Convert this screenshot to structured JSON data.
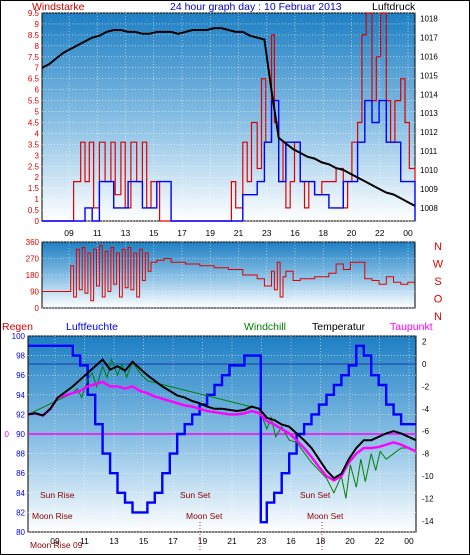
{
  "header": {
    "title": "24 hour graph day : 10 Februar 2013",
    "left_label": "Windstarke",
    "right_label": "Luftdruck"
  },
  "x_ticks": [
    "09",
    "11",
    "13",
    "15",
    "17",
    "19",
    "21",
    "23",
    "16",
    "18",
    "20",
    "22",
    "00"
  ],
  "colors": {
    "wind": "#e00000",
    "gust": "#0000ff",
    "pressure": "#000000",
    "humidity": "#0000ff",
    "windchill": "#008000",
    "temperature": "#000000",
    "dewpoint": "#ff00ff",
    "moon_label": "#8b0000",
    "axis_label": "#0000ff",
    "grid": "#ffffff"
  },
  "chart_data": [
    {
      "type": "line",
      "title": "24 hour graph day : 10 Februar 2013",
      "ylabel_left": "Windstarke",
      "ylabel_right": "Luftdruck",
      "y_left_ticks": [
        "0",
        "0.5",
        "1",
        "1.5",
        "2",
        "2.5",
        "3",
        "3.5",
        "4",
        "4.5",
        "5",
        "5.5",
        "6",
        "6.5",
        "7",
        "7.5",
        "8",
        "8.5",
        "9",
        "9.5"
      ],
      "y_right_ticks": [
        "1008",
        "1009",
        "1010",
        "1011",
        "1012",
        "1013",
        "1014",
        "1015",
        "1016",
        "1017",
        "1018"
      ],
      "ylim_left": [
        0,
        9.5
      ],
      "ylim_right": [
        1007.3,
        1018.3
      ],
      "xlim": [
        0,
        26
      ],
      "series": [
        {
          "axis": "right",
          "x": [
            0,
            0.5,
            1,
            1.5,
            2,
            2.5,
            3,
            3.5,
            4,
            4.5,
            5,
            5.5,
            6,
            6.5,
            7,
            7.5,
            8,
            8.5,
            9,
            9.5,
            10,
            10.5,
            11,
            11.5,
            12,
            12.5,
            13,
            13.5,
            14,
            14.5,
            15,
            15.5,
            16,
            16.5,
            17,
            17.5,
            18,
            18.5,
            19,
            19.5,
            20,
            20.5,
            21,
            21.5,
            22,
            22.5,
            23,
            23.5,
            24,
            24.5,
            25,
            25.5,
            26
          ],
          "values": [
            1015.4,
            1015.6,
            1015.9,
            1016.2,
            1016.4,
            1016.6,
            1016.8,
            1017.0,
            1017.1,
            1017.3,
            1017.4,
            1017.4,
            1017.3,
            1017.3,
            1017.2,
            1017.2,
            1017.3,
            1017.3,
            1017.3,
            1017.2,
            1017.3,
            1017.4,
            1017.4,
            1017.4,
            1017.5,
            1017.5,
            1017.4,
            1017.3,
            1017.3,
            1017.1,
            1017.0,
            1016.9,
            1014.2,
            1011.7,
            1011.4,
            1011.1,
            1010.9,
            1010.7,
            1010.6,
            1010.4,
            1010.3,
            1010.1,
            1010.0,
            1009.8,
            1009.6,
            1009.4,
            1009.2,
            1009.0,
            1008.8,
            1008.7,
            1008.5,
            1008.3,
            1008.1
          ]
        },
        {
          "axis": "left",
          "x": [
            0,
            1,
            2,
            2.2,
            2.7,
            3,
            3.3,
            3.6,
            4,
            4.4,
            4.8,
            5.1,
            5.5,
            5.8,
            6.2,
            6.6,
            7,
            7.3,
            7.6,
            8,
            8.2,
            8.5,
            9,
            10,
            11,
            12,
            13,
            13.2,
            13.5,
            14,
            14.3,
            14.6,
            15,
            15.3,
            15.6,
            16,
            16.2,
            16.5,
            16.8,
            17,
            17.3,
            17.6,
            18,
            18.3,
            18.6,
            19,
            19.5,
            20,
            20.5,
            21,
            21.3,
            21.6,
            22,
            22.3,
            22.6,
            23,
            23.3,
            23.6,
            24,
            24.3,
            24.6,
            25,
            25.3,
            25.6,
            26
          ],
          "values": [
            0,
            0,
            0,
            1.8,
            3.6,
            1.8,
            3.6,
            0.6,
            3.6,
            1.8,
            3.6,
            1.2,
            3.6,
            0.6,
            3.6,
            1.8,
            3.6,
            0.6,
            1.8,
            1.8,
            0,
            0,
            0,
            0,
            0,
            0,
            0,
            1.8,
            0.6,
            3.6,
            1.8,
            4.5,
            2.4,
            6.5,
            3.6,
            8.5,
            4.5,
            1.8,
            3.6,
            0.6,
            1.8,
            3.6,
            1.8,
            0.6,
            1.8,
            1.2,
            1.8,
            1.8,
            2.4,
            0.6,
            1.8,
            3.6,
            4.5,
            8.5,
            9.5,
            5.5,
            7.5,
            9.5,
            5.5,
            3.6,
            5.5,
            6.5,
            4.5,
            2.4,
            1.8
          ]
        },
        {
          "axis": "left",
          "x": [
            0,
            2.5,
            3,
            3.5,
            4,
            5,
            6,
            7,
            8,
            9,
            13,
            14,
            15,
            15.5,
            16,
            16.5,
            17,
            18,
            19,
            20,
            21,
            22,
            22.5,
            23,
            23.5,
            24,
            25,
            26
          ],
          "values": [
            0,
            0,
            0.6,
            0,
            1.8,
            0.6,
            1.8,
            0.6,
            1.8,
            0,
            0,
            1.2,
            1.8,
            3.6,
            5.5,
            1.8,
            3.6,
            1.8,
            1.2,
            0.6,
            1.8,
            3.6,
            5.5,
            4.5,
            5.5,
            3.6,
            1.8,
            0
          ]
        }
      ]
    },
    {
      "type": "line",
      "title": "",
      "ylabel_right": [
        "N",
        "W",
        "S",
        "O",
        "N"
      ],
      "y_ticks": [
        "0",
        "90",
        "180",
        "270",
        "360"
      ],
      "ylim": [
        0,
        360
      ],
      "xlim": [
        0,
        26
      ],
      "series": [
        {
          "x": [
            0,
            1,
            2,
            2.2,
            2.4,
            2.6,
            2.8,
            3,
            3.2,
            3.4,
            3.6,
            3.8,
            4,
            4.2,
            4.4,
            4.6,
            4.8,
            5,
            5.2,
            5.4,
            5.6,
            5.8,
            6,
            6.2,
            6.4,
            6.6,
            6.8,
            7,
            7.2,
            7.4,
            7.6,
            8,
            8.5,
            9,
            10,
            11,
            12,
            13,
            13.5,
            14,
            15,
            15.5,
            16,
            16.2,
            16.4,
            16.6,
            16.8,
            17,
            17.5,
            18,
            19,
            20,
            20.5,
            21,
            21.5,
            22,
            22.5,
            23,
            23.5,
            24,
            24.5,
            25,
            25.5,
            26
          ],
          "values": [
            90,
            90,
            230,
            60,
            320,
            100,
            330,
            80,
            300,
            40,
            320,
            120,
            340,
            60,
            310,
            90,
            330,
            130,
            300,
            60,
            320,
            110,
            330,
            100,
            300,
            60,
            320,
            150,
            300,
            200,
            250,
            260,
            270,
            250,
            240,
            230,
            220,
            210,
            210,
            180,
            160,
            120,
            200,
            100,
            250,
            60,
            170,
            200,
            150,
            160,
            170,
            190,
            240,
            210,
            250,
            250,
            160,
            150,
            130,
            170,
            140,
            130,
            140,
            140
          ]
        }
      ]
    },
    {
      "type": "line",
      "title": "",
      "legend": [
        "Regen",
        "Luftfeuchte",
        "Windchill",
        "Temperatur",
        "Taupunkt"
      ],
      "y_left_ticks": [
        "80",
        "82",
        "84",
        "86",
        "88",
        "90",
        "92",
        "94",
        "96",
        "98",
        "100"
      ],
      "y_right_ticks": [
        "2",
        "0",
        "-2",
        "-4",
        "-6",
        "-8",
        "-10",
        "-12",
        "-14"
      ],
      "ylim_left": [
        80,
        100
      ],
      "ylim_right": [
        -15,
        2.5
      ],
      "xlim": [
        0,
        26
      ],
      "series": [
        {
          "name": "Luftfeuchte",
          "axis": "left",
          "x": [
            0,
            0.5,
            1,
            1.5,
            2,
            2.5,
            3,
            3.5,
            4,
            4.5,
            5,
            5.5,
            6,
            6.5,
            7,
            7.5,
            8,
            8.5,
            9,
            9.5,
            10,
            10.5,
            11,
            11.5,
            12,
            12.5,
            13,
            13.5,
            14,
            14.5,
            15,
            15.5,
            15.6,
            16,
            16.5,
            17,
            17.5,
            18,
            18.5,
            19,
            19.5,
            20,
            20.5,
            21,
            21.5,
            22,
            22.5,
            23,
            23.5,
            24,
            24.5,
            25,
            25.5,
            26
          ],
          "values": [
            99,
            99,
            99,
            99,
            99,
            99,
            98,
            97,
            94,
            91,
            88,
            86,
            84,
            83,
            82,
            82,
            83,
            84,
            86,
            88,
            90,
            91,
            92,
            93,
            94,
            95,
            96,
            97,
            97,
            98,
            98,
            98,
            81,
            83,
            84,
            86,
            88,
            90,
            91,
            92,
            93,
            94,
            95,
            96,
            97,
            99,
            98,
            96,
            95,
            93,
            92,
            91,
            91,
            91
          ]
        },
        {
          "name": "Temperatur",
          "axis": "right",
          "x": [
            0,
            0.5,
            1,
            1.5,
            2,
            2.5,
            3,
            3.5,
            4,
            4.5,
            5,
            5.5,
            6,
            6.5,
            7,
            7.5,
            8,
            8.5,
            9,
            9.5,
            10,
            10.5,
            11,
            11.5,
            12,
            12.5,
            13,
            13.5,
            14,
            14.5,
            15,
            15.5,
            16,
            16.5,
            17,
            17.5,
            18,
            18.5,
            19,
            19.5,
            20,
            20.5,
            21,
            21.5,
            22,
            22.5,
            23,
            23.5,
            24,
            24.5,
            25,
            25.5,
            26
          ],
          "values": [
            -4.5,
            -4.4,
            -4.6,
            -4.0,
            -3.0,
            -2.5,
            -2.0,
            -1.4,
            -0.8,
            -0.2,
            0.4,
            -0.5,
            -0.2,
            -0.6,
            0.2,
            -0.4,
            -1.0,
            -1.5,
            -2.0,
            -2.4,
            -2.8,
            -3.0,
            -3.3,
            -3.5,
            -3.8,
            -4.0,
            -4.0,
            -4.1,
            -4.2,
            -4.1,
            -3.8,
            -4.0,
            -4.8,
            -5.0,
            -5.4,
            -5.6,
            -6.2,
            -6.8,
            -7.5,
            -8.5,
            -9.5,
            -10.2,
            -9.8,
            -8.5,
            -7.5,
            -6.8,
            -6.8,
            -6.5,
            -6.2,
            -6.0,
            -6.2,
            -6.5,
            -6.8
          ]
        },
        {
          "name": "Taupunkt",
          "axis": "right",
          "x": [
            0,
            0.5,
            1,
            1.5,
            2,
            2.5,
            3,
            3.5,
            4,
            4.5,
            5,
            5.5,
            6,
            6.5,
            7,
            7.5,
            8,
            8.5,
            9,
            9.5,
            10,
            10.5,
            11,
            11.5,
            12,
            12.5,
            13,
            13.5,
            14,
            14.5,
            15,
            15.5,
            16,
            16.5,
            17,
            17.5,
            18,
            18.5,
            19,
            19.5,
            20,
            20.5,
            21,
            21.5,
            22,
            22.5,
            23,
            23.5,
            24,
            24.5,
            25,
            25.5,
            26
          ],
          "values": [
            -4.5,
            -4.4,
            -4.6,
            -4.0,
            -3.0,
            -2.8,
            -2.6,
            -2.4,
            -2.0,
            -1.8,
            -1.6,
            -2.0,
            -2.0,
            -2.2,
            -2.0,
            -2.4,
            -2.6,
            -2.9,
            -3.1,
            -3.3,
            -3.5,
            -3.7,
            -3.8,
            -4.0,
            -4.2,
            -4.3,
            -4.4,
            -4.5,
            -4.5,
            -4.4,
            -4.2,
            -4.4,
            -5.1,
            -5.4,
            -5.8,
            -6.2,
            -6.8,
            -7.5,
            -8.3,
            -9.2,
            -10.0,
            -10.4,
            -10.0,
            -8.8,
            -8.0,
            -7.5,
            -7.5,
            -7.4,
            -7.2,
            -7.0,
            -7.2,
            -7.5,
            -7.8
          ]
        },
        {
          "name": "Windchill",
          "axis": "right",
          "x": [
            0,
            3,
            3.3,
            3.6,
            4,
            4.3,
            4.6,
            5,
            5.3,
            5.6,
            6,
            6.3,
            6.6,
            7,
            7.5,
            8,
            15.5,
            16,
            16.3,
            16.6,
            17,
            17.5,
            18,
            19,
            20,
            20.5,
            21,
            21.3,
            21.6,
            22,
            22.3,
            22.6,
            23,
            23.3,
            23.6,
            24,
            24.5,
            25,
            25.5,
            26
          ],
          "values": [
            -4.5,
            -2.6,
            -2.2,
            -3.0,
            -1.4,
            -0.8,
            -2.0,
            -0.2,
            -1.2,
            0.4,
            -1.0,
            0.0,
            -1.2,
            0.2,
            -0.8,
            -1.5,
            -4.0,
            -5.8,
            -4.8,
            -6.5,
            -5.6,
            -6.8,
            -7.0,
            -8.8,
            -10.2,
            -11.5,
            -10.0,
            -12.0,
            -9.0,
            -11.0,
            -8.5,
            -10.5,
            -8.0,
            -9.5,
            -7.8,
            -8.5,
            -8.0,
            -7.5,
            -7.5,
            -7.8
          ]
        }
      ],
      "annotations": [
        "Sun Rise",
        "Sun Set",
        "Sun Set",
        "Moon Rise",
        "Moon Set",
        "Moon Set",
        "Moon Rise 09"
      ],
      "reference_line_value": 90,
      "reference_line_label": "0",
      "right_ref_value": 0
    }
  ]
}
